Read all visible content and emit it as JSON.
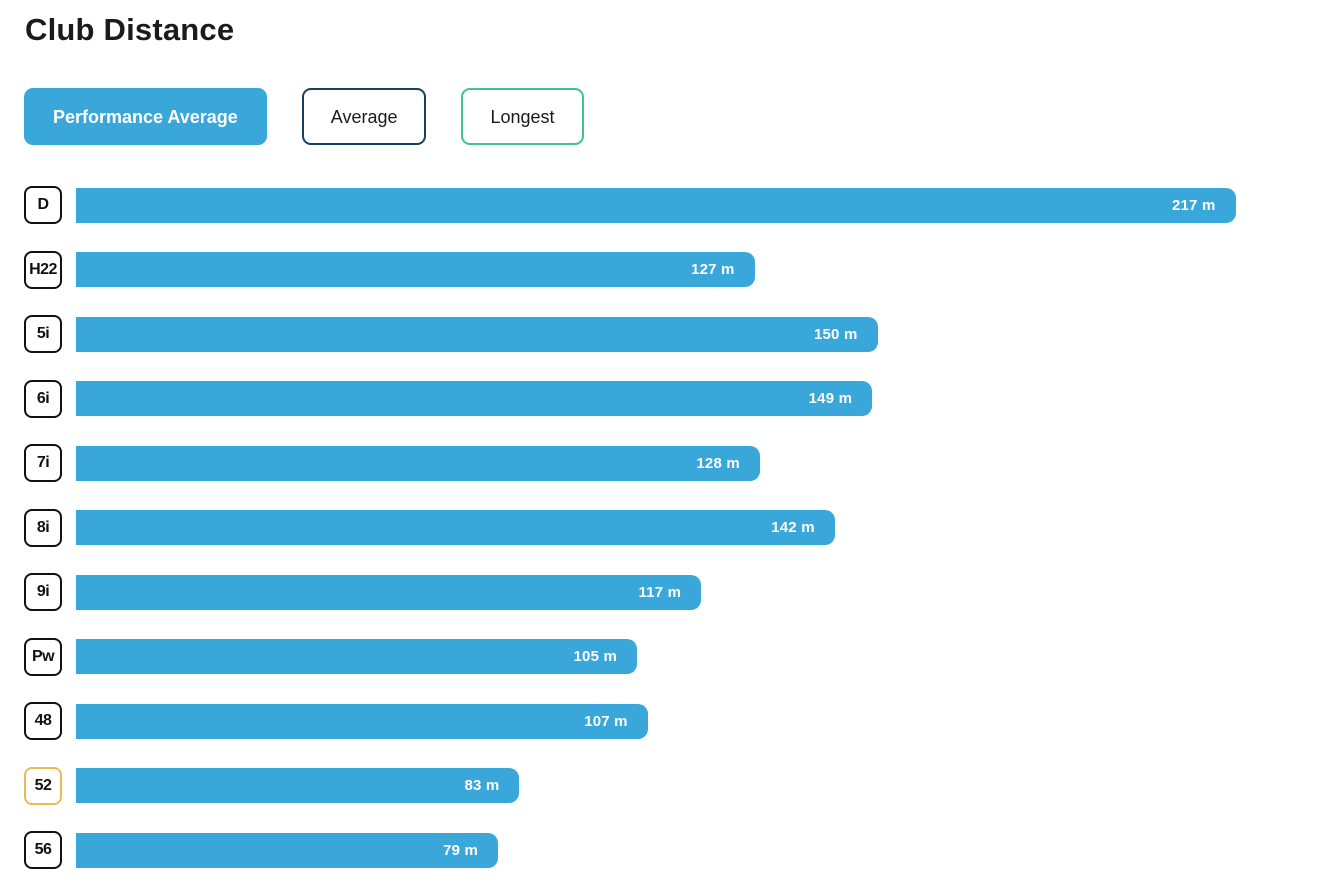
{
  "page": {
    "title": "Club Distance"
  },
  "tabs": [
    {
      "id": "performance-average",
      "label": "Performance Average",
      "active": true
    },
    {
      "id": "average",
      "label": "Average",
      "active": false,
      "border_color": "#17405f"
    },
    {
      "id": "longest",
      "label": "Longest",
      "active": false,
      "border_color": "#3fc48c"
    }
  ],
  "colors": {
    "bar": "#39a7da",
    "active_tab_bg": "#39a7da",
    "active_tab_text": "#ffffff",
    "tab_text": "#1a1a1a",
    "average_tab_border": "#17405f",
    "longest_tab_border": "#3fc48c",
    "club_box_border": "#111111",
    "highlighted_club_box_border": "#eaba58",
    "title_text": "#1b1b1b",
    "bar_label_text": "#ffffff"
  },
  "chart_data": {
    "type": "bar",
    "orientation": "horizontal",
    "title": "Club Distance",
    "unit": "m",
    "categories": [
      "D",
      "H22",
      "5i",
      "6i",
      "7i",
      "8i",
      "9i",
      "Pw",
      "48",
      "52",
      "56"
    ],
    "values": [
      217,
      127,
      150,
      149,
      128,
      142,
      117,
      105,
      107,
      83,
      79
    ],
    "labels": [
      "217 m",
      "127 m",
      "150 m",
      "149 m",
      "128 m",
      "142 m",
      "117 m",
      "105 m",
      "107 m",
      "83 m",
      "79 m"
    ],
    "xlim": [
      0,
      233
    ],
    "highlighted_category": "52",
    "bar_color": "#39a7da",
    "value_labels_inside": true,
    "grid": false,
    "legend": false
  }
}
